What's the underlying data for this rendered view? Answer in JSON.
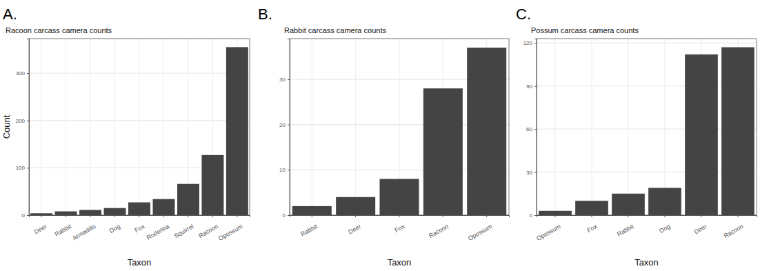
{
  "chart_data": [
    {
      "type": "bar",
      "panel_label": "A.",
      "title": "Racoon carcass camera counts",
      "x_label": "Taxon",
      "y_label": "Count",
      "categories": [
        "Deer",
        "Rabbit",
        "Armadillo",
        "Dog",
        "Fox",
        "Rodentia",
        "Squirrel",
        "Racoon",
        "Opossum"
      ],
      "values": [
        4,
        8,
        11,
        15,
        27,
        34,
        66,
        127,
        355
      ],
      "color": "#444444",
      "ylim": [
        0,
        373
      ],
      "yticks": [
        0,
        100,
        200,
        300
      ],
      "grid": true
    },
    {
      "type": "bar",
      "panel_label": "B.",
      "title": "Rabbit carcass camera counts",
      "x_label": "Taxon",
      "categories": [
        "Rabbit",
        "Deer",
        "Fox",
        "Racoon",
        "Opossum"
      ],
      "values": [
        2,
        4,
        8,
        28,
        37
      ],
      "color": "#444444",
      "ylim": [
        0,
        39
      ],
      "yticks": [
        0,
        10,
        20,
        30
      ],
      "grid": true
    },
    {
      "type": "bar",
      "panel_label": "C.",
      "title": "Possum carcass camera counts",
      "x_label": "Taxon",
      "categories": [
        "Opossum",
        "Fox",
        "Rabbit",
        "Dog",
        "Deer",
        "Racoon"
      ],
      "values": [
        3,
        10,
        15,
        19,
        112,
        117
      ],
      "color": "#444444",
      "ylim": [
        0,
        123
      ],
      "yticks": [
        0,
        30,
        60,
        90,
        120
      ],
      "grid": true
    }
  ]
}
